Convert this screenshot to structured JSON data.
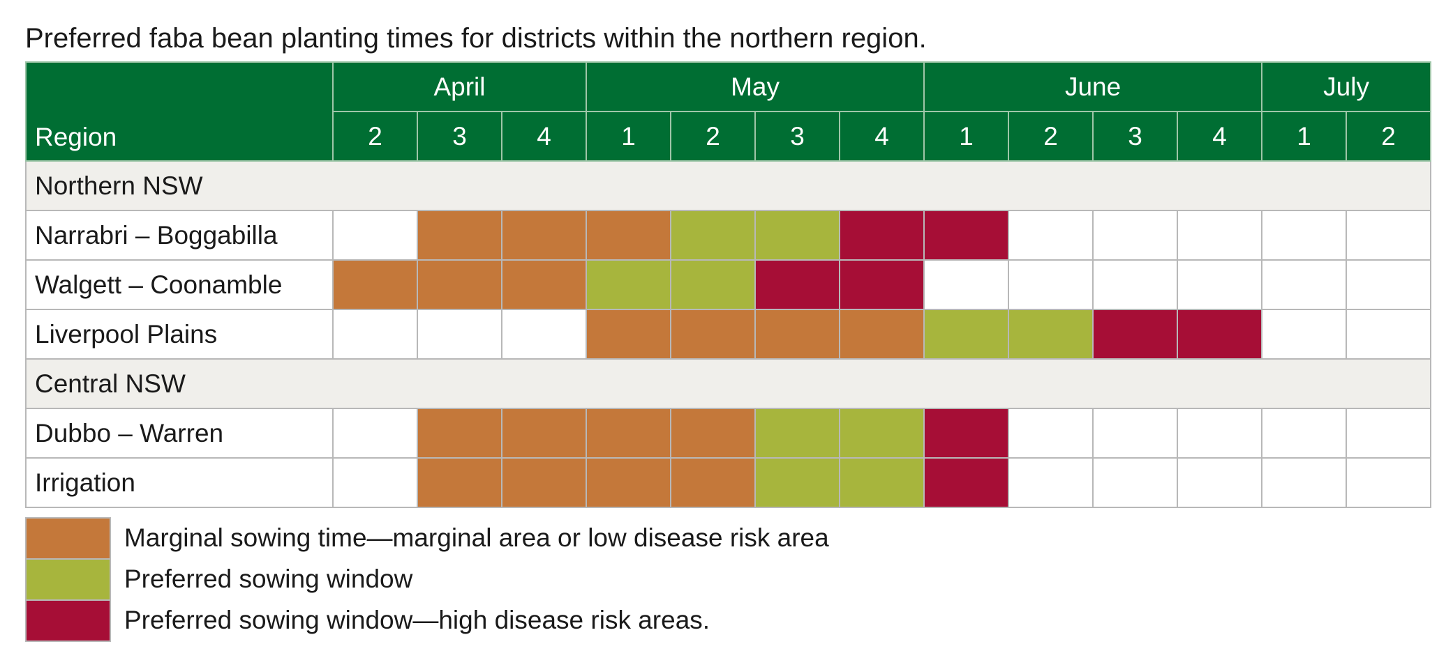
{
  "colors": {
    "marginal": "#c4783a",
    "preferred": "#a7b53d",
    "high_risk": "#a60e36",
    "header": "#006e33"
  },
  "chart_data": {
    "type": "table",
    "title": "Preferred faba bean planting times for districts within the northern region.",
    "row_header": "Region",
    "months": [
      {
        "name": "April",
        "weeks": [
          "2",
          "3",
          "4"
        ]
      },
      {
        "name": "May",
        "weeks": [
          "1",
          "2",
          "3",
          "4"
        ]
      },
      {
        "name": "June",
        "weeks": [
          "1",
          "2",
          "3",
          "4"
        ]
      },
      {
        "name": "July",
        "weeks": [
          "1",
          "2"
        ]
      }
    ],
    "groups": [
      {
        "name": "Northern NSW",
        "rows": [
          {
            "region": "Narrabri – Boggabilla",
            "cells": [
              "",
              "marginal",
              "marginal",
              "marginal",
              "preferred",
              "preferred",
              "high_risk",
              "high_risk",
              "",
              "",
              "",
              "",
              ""
            ]
          },
          {
            "region": "Walgett – Coonamble",
            "cells": [
              "marginal",
              "marginal",
              "marginal",
              "preferred",
              "preferred",
              "high_risk",
              "high_risk",
              "",
              "",
              "",
              "",
              "",
              ""
            ]
          },
          {
            "region": "Liverpool Plains",
            "cells": [
              "",
              "",
              "",
              "marginal",
              "marginal",
              "marginal",
              "marginal",
              "preferred",
              "preferred",
              "high_risk",
              "high_risk",
              "",
              ""
            ]
          }
        ]
      },
      {
        "name": "Central NSW",
        "rows": [
          {
            "region": "Dubbo – Warren",
            "cells": [
              "",
              "marginal",
              "marginal",
              "marginal",
              "marginal",
              "preferred",
              "preferred",
              "high_risk",
              "",
              "",
              "",
              "",
              ""
            ]
          },
          {
            "region": "Irrigation",
            "cells": [
              "",
              "marginal",
              "marginal",
              "marginal",
              "marginal",
              "preferred",
              "preferred",
              "high_risk",
              "",
              "",
              "",
              "",
              ""
            ]
          }
        ]
      }
    ],
    "legend": [
      {
        "key": "marginal",
        "label": "Marginal sowing time—marginal area or low disease risk area"
      },
      {
        "key": "preferred",
        "label": "Preferred sowing window"
      },
      {
        "key": "high_risk",
        "label": "Preferred sowing window—high disease risk areas."
      }
    ]
  }
}
